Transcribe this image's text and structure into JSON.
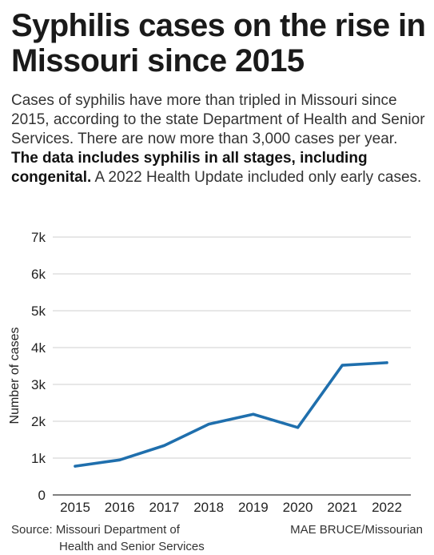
{
  "headline": "Syphilis cases on the rise in Missouri since 2015",
  "dek_lead": "Cases of syphilis have more than tripled in Missouri since 2015, according to the state Department of Health and Senior Services. There are now more than 3,000 cases per year. ",
  "dek_bold": "The data includes syphilis in all stages, including congenital.",
  "dek_tail": " A 2022 Health Update included only early cases.",
  "source_line1": "Source: Missouri Department of",
  "source_line2": "Health and Senior Services",
  "credit_name": "MAE BRUCE",
  "credit_org": "/Missourian",
  "chart_data": {
    "type": "line",
    "ylabel": "Number of cases",
    "xlabel": "",
    "categories": [
      "2015",
      "2016",
      "2017",
      "2018",
      "2019",
      "2020",
      "2021",
      "2022"
    ],
    "values": [
      780,
      950,
      1340,
      1920,
      2190,
      1830,
      3520,
      3590
    ],
    "ylim": [
      0,
      7000
    ],
    "yticks": [
      0,
      1000,
      2000,
      3000,
      4000,
      5000,
      6000,
      7000
    ],
    "ytick_labels": [
      "0",
      "1k",
      "2k",
      "3k",
      "4k",
      "5k",
      "6k",
      "7k"
    ],
    "line_color": "#1f6fad",
    "grid": true
  }
}
